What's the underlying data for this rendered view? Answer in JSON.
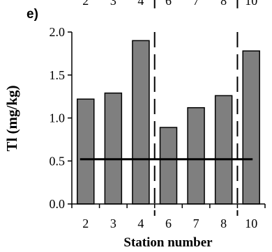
{
  "panel_label": "e)",
  "top_cut_labels": [
    "2",
    "3",
    "4",
    "6",
    "7",
    "8",
    "10"
  ],
  "chart_data": {
    "type": "bar",
    "categories": [
      "2",
      "3",
      "4",
      "6",
      "7",
      "8",
      "10"
    ],
    "values": [
      1.22,
      1.29,
      1.9,
      0.89,
      1.12,
      1.26,
      1.78
    ],
    "title": "",
    "xlabel": "Station number",
    "ylabel": "Tl (mg/kg)",
    "ylim": [
      0.0,
      2.0
    ],
    "yticks": [
      "0.0",
      "0.5",
      "1.0",
      "1.5",
      "2.0"
    ],
    "grid": false,
    "reference_line": 0.52,
    "dividers_after_category_index": [
      2,
      5
    ],
    "colors": {
      "bar_fill": "#7f7f7f",
      "bar_stroke": "#000000",
      "line": "#000000"
    }
  }
}
